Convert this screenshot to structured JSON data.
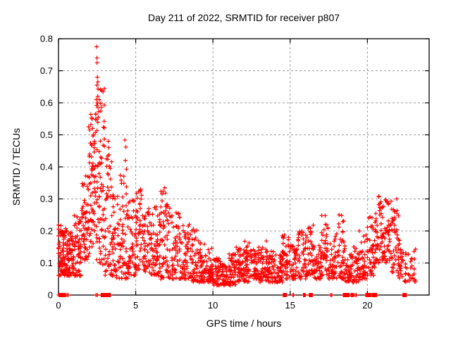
{
  "window": {
    "background": "#ffffff"
  },
  "chart_data": {
    "type": "scatter",
    "title": "Day 211 of 2022, SRMTID for receiver p807",
    "xlabel": "GPS time / hours",
    "ylabel": "SRMTID / TECUs",
    "xlim": [
      0,
      24
    ],
    "ylim": [
      0,
      0.8
    ],
    "xticks": {
      "values": [
        0,
        5,
        10,
        15,
        20
      ],
      "labels": [
        "0",
        "5",
        "10",
        "15",
        "20"
      ]
    },
    "yticks": {
      "values": [
        0,
        0.1,
        0.2,
        0.3,
        0.4,
        0.5,
        0.6,
        0.7,
        0.8
      ],
      "labels": [
        "0",
        "0.1",
        "0.2",
        "0.3",
        "0.4",
        "0.5",
        "0.6",
        "0.7",
        "0.8"
      ]
    },
    "grid": {
      "show": true,
      "color": "#9a9a9a",
      "style": "dashed"
    },
    "axis_color": "#000000",
    "series": [
      {
        "name": "SRMTID",
        "marker": "plus",
        "color": "#ff0000"
      }
    ],
    "generator_seed": 42,
    "distribution_bands": [
      [
        0.0,
        0.5,
        0.06,
        0.22,
        80,
        1.4
      ],
      [
        0.5,
        1.0,
        0.06,
        0.2,
        70,
        1.5
      ],
      [
        1.0,
        1.5,
        0.06,
        0.25,
        60,
        1.4
      ],
      [
        1.5,
        2.0,
        0.11,
        0.38,
        60,
        1.3
      ],
      [
        2.0,
        2.5,
        0.14,
        0.57,
        70,
        1.2
      ],
      [
        2.5,
        3.0,
        0.09,
        0.66,
        70,
        1.25
      ],
      [
        3.0,
        3.5,
        0.06,
        0.44,
        55,
        1.4
      ],
      [
        3.5,
        4.0,
        0.05,
        0.33,
        50,
        1.4
      ],
      [
        4.0,
        4.5,
        0.05,
        0.4,
        50,
        1.5
      ],
      [
        4.5,
        5.0,
        0.06,
        0.3,
        50,
        1.5
      ],
      [
        5.0,
        5.5,
        0.08,
        0.33,
        48,
        1.6
      ],
      [
        5.5,
        6.0,
        0.07,
        0.28,
        48,
        1.5
      ],
      [
        6.0,
        6.5,
        0.06,
        0.28,
        48,
        1.5
      ],
      [
        6.5,
        7.0,
        0.05,
        0.33,
        50,
        1.5
      ],
      [
        7.0,
        7.5,
        0.05,
        0.29,
        45,
        1.5
      ],
      [
        7.5,
        8.0,
        0.05,
        0.26,
        42,
        1.6
      ],
      [
        8.0,
        8.5,
        0.05,
        0.23,
        45,
        1.6
      ],
      [
        8.5,
        9.0,
        0.04,
        0.21,
        45,
        1.6
      ],
      [
        9.0,
        9.5,
        0.04,
        0.17,
        45,
        1.5
      ],
      [
        9.5,
        10.0,
        0.04,
        0.15,
        45,
        1.5
      ],
      [
        10.0,
        10.5,
        0.03,
        0.12,
        45,
        1.4
      ],
      [
        10.5,
        11.0,
        0.03,
        0.1,
        48,
        1.3
      ],
      [
        11.0,
        11.5,
        0.03,
        0.13,
        48,
        1.4
      ],
      [
        11.5,
        12.0,
        0.04,
        0.16,
        48,
        1.4
      ],
      [
        12.0,
        12.5,
        0.04,
        0.17,
        48,
        1.4
      ],
      [
        12.5,
        13.0,
        0.05,
        0.15,
        45,
        1.4
      ],
      [
        13.0,
        13.5,
        0.04,
        0.17,
        45,
        1.4
      ],
      [
        13.5,
        14.0,
        0.04,
        0.14,
        45,
        1.4
      ],
      [
        14.0,
        14.5,
        0.04,
        0.13,
        45,
        1.4
      ],
      [
        14.5,
        15.0,
        0.05,
        0.19,
        45,
        1.5
      ],
      [
        15.0,
        15.5,
        0.05,
        0.16,
        42,
        1.5
      ],
      [
        15.5,
        16.0,
        0.05,
        0.2,
        42,
        1.5
      ],
      [
        16.0,
        16.5,
        0.06,
        0.22,
        45,
        1.5
      ],
      [
        16.5,
        17.0,
        0.05,
        0.16,
        42,
        1.5
      ],
      [
        17.0,
        17.5,
        0.06,
        0.25,
        45,
        1.5
      ],
      [
        17.5,
        18.0,
        0.05,
        0.19,
        42,
        1.5
      ],
      [
        18.0,
        18.5,
        0.05,
        0.26,
        45,
        1.5
      ],
      [
        18.5,
        19.0,
        0.04,
        0.16,
        45,
        1.4
      ],
      [
        19.0,
        19.5,
        0.04,
        0.16,
        40,
        1.4
      ],
      [
        19.5,
        20.0,
        0.05,
        0.19,
        40,
        1.5
      ],
      [
        20.0,
        20.5,
        0.06,
        0.25,
        45,
        1.4
      ],
      [
        20.5,
        21.0,
        0.1,
        0.31,
        50,
        1.2
      ],
      [
        21.0,
        21.5,
        0.1,
        0.3,
        50,
        1.2
      ],
      [
        21.5,
        22.0,
        0.07,
        0.27,
        45,
        1.3
      ],
      [
        22.0,
        22.4,
        0.05,
        0.18,
        25,
        1.4
      ],
      [
        22.4,
        23.1,
        0.04,
        0.15,
        35,
        1.2
      ]
    ],
    "peak_points": [
      [
        2.47,
        0.775
      ],
      [
        2.49,
        0.74
      ],
      [
        2.5,
        0.725
      ],
      [
        2.52,
        0.68
      ],
      [
        2.55,
        0.665
      ],
      [
        2.49,
        0.655
      ],
      [
        2.45,
        0.61
      ],
      [
        2.53,
        0.6
      ],
      [
        2.47,
        0.592
      ],
      [
        2.56,
        0.585
      ],
      [
        2.6,
        0.572
      ],
      [
        2.42,
        0.565
      ],
      [
        2.58,
        0.555
      ],
      [
        1.95,
        0.525
      ],
      [
        2.02,
        0.515
      ],
      [
        2.1,
        0.532
      ],
      [
        2.16,
        0.553
      ],
      [
        2.21,
        0.52
      ],
      [
        2.26,
        0.5
      ],
      [
        2.33,
        0.48
      ],
      [
        3.22,
        0.48
      ],
      [
        3.26,
        0.46
      ],
      [
        3.1,
        0.425
      ],
      [
        4.3,
        0.484
      ],
      [
        4.36,
        0.462
      ],
      [
        4.33,
        0.42
      ],
      [
        5.32,
        0.33
      ],
      [
        6.88,
        0.335
      ],
      [
        6.93,
        0.318
      ],
      [
        19.48,
        0.2
      ],
      [
        20.75,
        0.308
      ],
      [
        21.2,
        0.295
      ],
      [
        21.9,
        0.3
      ]
    ],
    "zero_value_runs": [
      [
        0.02,
        0.46
      ],
      [
        2.76,
        3.06
      ],
      [
        3.1,
        3.32
      ],
      [
        14.55,
        14.76
      ],
      [
        15.86,
        15.98
      ],
      [
        16.24,
        16.44
      ],
      [
        18.44,
        18.82
      ],
      [
        18.94,
        19.1
      ],
      [
        19.9,
        20.02
      ],
      [
        20.06,
        20.22
      ],
      [
        20.3,
        20.6
      ],
      [
        22.3,
        22.52
      ]
    ],
    "zero_value_points": [
      0.55,
      0.64,
      2.43,
      2.52,
      3.36,
      15.18,
      15.22,
      17.62,
      17.7,
      19.2,
      19.28
    ]
  }
}
